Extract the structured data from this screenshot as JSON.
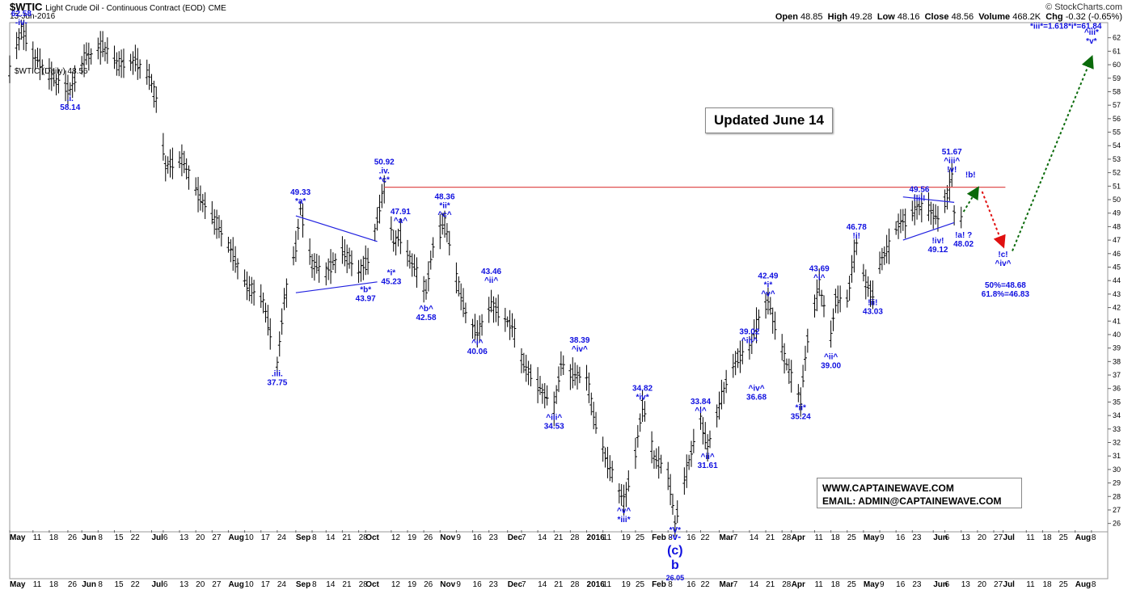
{
  "header": {
    "symbol": "$WTIC",
    "title": "Light Crude Oil - Continuous Contract (EOD)",
    "exchange": "CME",
    "date": "13-Jun-2016",
    "brand": "© StockCharts.com",
    "open_label": "Open",
    "open": "48.85",
    "high_label": "High",
    "high": "49.28",
    "low_label": "Low",
    "low": "48.16",
    "close_label": "Close",
    "close": "48.56",
    "volume_label": "Volume",
    "volume": "468.2K",
    "chg_label": "Chg",
    "chg": "-0.32 (-0.65%)",
    "legend": "$WTIC (Daily) 48.56"
  },
  "annotations": {
    "updated": "Updated June 14",
    "site": "WWW.CAPTAINEWAVE.COM",
    "email": "EMAIL: ADMIN@CAPTAINEWAVE.COM"
  },
  "colors": {
    "wave_labels": "#1010e0",
    "resistance_line": "#e05050",
    "triangle": "#2020e0",
    "bars": "#000000",
    "arrow_up": "#0a6a0a",
    "arrow_down": "#e01010"
  },
  "chart_data": {
    "type": "ohlc",
    "y_range": [
      25.5,
      63
    ],
    "y_ticks": [
      26,
      27,
      28,
      29,
      30,
      31,
      32,
      33,
      34,
      35,
      36,
      37,
      38,
      39,
      40,
      41,
      42,
      43,
      44,
      45,
      46,
      47,
      48,
      49,
      50,
      51,
      52,
      53,
      54,
      55,
      56,
      57,
      58,
      59,
      60,
      61,
      62
    ],
    "x_range": [
      "2015-05-01",
      "2016-08-15"
    ],
    "x_labels": [
      {
        "t": "May",
        "d": "2015-05-01",
        "bold": true
      },
      {
        "t": "11",
        "d": "2015-05-11"
      },
      {
        "t": "18",
        "d": "2015-05-18"
      },
      {
        "t": "26",
        "d": "2015-05-26"
      },
      {
        "t": "Jun",
        "d": "2015-06-01",
        "bold": true
      },
      {
        "t": "8",
        "d": "2015-06-08"
      },
      {
        "t": "15",
        "d": "2015-06-15"
      },
      {
        "t": "22",
        "d": "2015-06-22"
      },
      {
        "t": "Jul",
        "d": "2015-07-01",
        "bold": true
      },
      {
        "t": "6",
        "d": "2015-07-06"
      },
      {
        "t": "13",
        "d": "2015-07-13"
      },
      {
        "t": "20",
        "d": "2015-07-20"
      },
      {
        "t": "27",
        "d": "2015-07-27"
      },
      {
        "t": "Aug",
        "d": "2015-08-03",
        "bold": true
      },
      {
        "t": "10",
        "d": "2015-08-10"
      },
      {
        "t": "17",
        "d": "2015-08-17"
      },
      {
        "t": "24",
        "d": "2015-08-24"
      },
      {
        "t": "Sep",
        "d": "2015-09-01",
        "bold": true
      },
      {
        "t": "8",
        "d": "2015-09-08"
      },
      {
        "t": "14",
        "d": "2015-09-14"
      },
      {
        "t": "21",
        "d": "2015-09-21"
      },
      {
        "t": "28",
        "d": "2015-09-28"
      },
      {
        "t": "Oct",
        "d": "2015-10-01",
        "bold": true
      },
      {
        "t": "12",
        "d": "2015-10-12"
      },
      {
        "t": "19",
        "d": "2015-10-19"
      },
      {
        "t": "26",
        "d": "2015-10-26"
      },
      {
        "t": "Nov",
        "d": "2015-11-02",
        "bold": true
      },
      {
        "t": "9",
        "d": "2015-11-09"
      },
      {
        "t": "16",
        "d": "2015-11-16"
      },
      {
        "t": "23",
        "d": "2015-11-23"
      },
      {
        "t": "Dec",
        "d": "2015-12-01",
        "bold": true
      },
      {
        "t": "7",
        "d": "2015-12-07"
      },
      {
        "t": "14",
        "d": "2015-12-14"
      },
      {
        "t": "21",
        "d": "2015-12-21"
      },
      {
        "t": "28",
        "d": "2015-12-28"
      },
      {
        "t": "2016",
        "d": "2016-01-04",
        "bold": true
      },
      {
        "t": "11",
        "d": "2016-01-11"
      },
      {
        "t": "19",
        "d": "2016-01-19"
      },
      {
        "t": "25",
        "d": "2016-01-25"
      },
      {
        "t": "Feb",
        "d": "2016-02-01",
        "bold": true
      },
      {
        "t": "8",
        "d": "2016-02-08"
      },
      {
        "t": "16",
        "d": "2016-02-16"
      },
      {
        "t": "22",
        "d": "2016-02-22"
      },
      {
        "t": "Mar",
        "d": "2016-03-01",
        "bold": true
      },
      {
        "t": "7",
        "d": "2016-03-07"
      },
      {
        "t": "14",
        "d": "2016-03-14"
      },
      {
        "t": "21",
        "d": "2016-03-21"
      },
      {
        "t": "28",
        "d": "2016-03-28"
      },
      {
        "t": "Apr",
        "d": "2016-04-01",
        "bold": true
      },
      {
        "t": "11",
        "d": "2016-04-11"
      },
      {
        "t": "18",
        "d": "2016-04-18"
      },
      {
        "t": "25",
        "d": "2016-04-25"
      },
      {
        "t": "May",
        "d": "2016-05-02",
        "bold": true
      },
      {
        "t": "9",
        "d": "2016-05-09"
      },
      {
        "t": "16",
        "d": "2016-05-16"
      },
      {
        "t": "23",
        "d": "2016-05-23"
      },
      {
        "t": "Jun",
        "d": "2016-06-01",
        "bold": true
      },
      {
        "t": "6",
        "d": "2016-06-06"
      },
      {
        "t": "13",
        "d": "2016-06-13"
      },
      {
        "t": "20",
        "d": "2016-06-20"
      },
      {
        "t": "27",
        "d": "2016-06-27"
      },
      {
        "t": "Jul",
        "d": "2016-07-01",
        "bold": true
      },
      {
        "t": "11",
        "d": "2016-07-11"
      },
      {
        "t": "18",
        "d": "2016-07-18"
      },
      {
        "t": "25",
        "d": "2016-07-25"
      },
      {
        "t": "Aug",
        "d": "2016-08-01",
        "bold": true
      },
      {
        "t": "8",
        "d": "2016-08-08"
      }
    ],
    "price_path": [
      [
        "2015-05-01",
        59.5
      ],
      [
        "2015-05-06",
        62.58
      ],
      [
        "2015-05-12",
        60.5
      ],
      [
        "2015-05-20",
        58.9
      ],
      [
        "2015-05-27",
        58.14
      ],
      [
        "2015-06-02",
        60.4
      ],
      [
        "2015-06-10",
        61.4
      ],
      [
        "2015-06-17",
        60.0
      ],
      [
        "2015-06-24",
        60.3
      ],
      [
        "2015-06-30",
        59.1
      ],
      [
        "2015-07-03",
        57.4
      ],
      [
        "2015-07-07",
        52.5
      ],
      [
        "2015-07-14",
        53.0
      ],
      [
        "2015-07-21",
        50.4
      ],
      [
        "2015-07-28",
        48.5
      ],
      [
        "2015-08-04",
        46.3
      ],
      [
        "2015-08-11",
        43.6
      ],
      [
        "2015-08-18",
        42.5
      ],
      [
        "2015-08-24",
        37.75
      ],
      [
        "2015-08-27",
        42.5
      ],
      [
        "2015-09-01",
        46.5
      ],
      [
        "2015-09-03",
        49.33
      ],
      [
        "2015-09-08",
        45.2
      ],
      [
        "2015-09-14",
        44.6
      ],
      [
        "2015-09-21",
        46.2
      ],
      [
        "2015-09-28",
        44.6
      ],
      [
        "2015-10-02",
        45.5
      ],
      [
        "2015-10-06",
        48.5
      ],
      [
        "2015-10-09",
        50.92
      ],
      [
        "2015-10-13",
        46.8
      ],
      [
        "2015-10-16",
        47.3
      ],
      [
        "2015-10-20",
        45.6
      ],
      [
        "2015-10-23",
        44.6
      ],
      [
        "2015-10-27",
        43.2
      ],
      [
        "2015-10-30",
        46.6
      ],
      [
        "2015-11-04",
        48.36
      ],
      [
        "2015-11-09",
        44.2
      ],
      [
        "2015-11-13",
        41.6
      ],
      [
        "2015-11-18",
        40.06
      ],
      [
        "2015-11-24",
        42.2
      ],
      [
        "2015-11-27",
        41.7
      ],
      [
        "2015-12-03",
        40.6
      ],
      [
        "2015-12-08",
        37.7
      ],
      [
        "2015-12-14",
        36.3
      ],
      [
        "2015-12-21",
        34.53
      ],
      [
        "2015-12-24",
        37.8
      ],
      [
        "2015-12-28",
        37.1
      ],
      [
        "2016-01-04",
        36.8
      ],
      [
        "2016-01-08",
        33.2
      ],
      [
        "2016-01-13",
        30.5
      ],
      [
        "2016-01-20",
        27.6
      ],
      [
        "2016-01-25",
        31.2
      ],
      [
        "2016-01-28",
        34.82
      ],
      [
        "2016-02-02",
        30.9
      ],
      [
        "2016-02-08",
        29.7
      ],
      [
        "2016-02-11",
        26.05
      ],
      [
        "2016-02-17",
        30.6
      ],
      [
        "2016-02-22",
        33.84
      ],
      [
        "2016-02-25",
        31.61
      ],
      [
        "2016-03-01",
        34.7
      ],
      [
        "2016-03-04",
        36.5
      ],
      [
        "2016-03-09",
        38.3
      ],
      [
        "2016-03-14",
        39.02
      ],
      [
        "2016-03-18",
        41.2
      ],
      [
        "2016-03-22",
        42.49
      ],
      [
        "2016-03-29",
        38.3
      ],
      [
        "2016-04-01",
        36.8
      ],
      [
        "2016-04-05",
        35.24
      ],
      [
        "2016-04-08",
        39.7
      ],
      [
        "2016-04-13",
        43.69
      ],
      [
        "2016-04-18",
        39.8
      ],
      [
        "2016-04-20",
        42.6
      ],
      [
        "2016-04-25",
        42.6
      ],
      [
        "2016-04-29",
        46.78
      ],
      [
        "2016-05-03",
        43.7
      ],
      [
        "2016-05-06",
        43.03
      ],
      [
        "2016-05-10",
        45.7
      ],
      [
        "2016-05-13",
        46.5
      ],
      [
        "2016-05-17",
        48.2
      ],
      [
        "2016-05-20",
        48.5
      ],
      [
        "2016-05-26",
        49.56
      ],
      [
        "2016-05-31",
        49.1
      ],
      [
        "2016-06-03",
        48.6
      ],
      [
        "2016-06-07",
        50.3
      ],
      [
        "2016-06-09",
        51.67
      ],
      [
        "2016-06-10",
        49.1
      ],
      [
        "2016-06-13",
        48.56
      ]
    ],
    "resistance_line": {
      "from": "2015-10-09",
      "to": "2016-07-02",
      "value": 50.92
    },
    "triangles": [
      {
        "d0": "2015-09-01",
        "d1": "2015-10-06",
        "top": [
          48.8,
          46.9
        ],
        "bottom": [
          43.1,
          43.9
        ]
      },
      {
        "d0": "2016-05-19",
        "d1": "2016-06-10",
        "top": [
          50.2,
          49.8
        ],
        "bottom": [
          47.0,
          48.3
        ]
      }
    ],
    "arrows": [
      {
        "color": "arrow_up",
        "from": [
          "2016-06-14",
          49.1
        ],
        "to": [
          "2016-06-20",
          50.8
        ]
      },
      {
        "color": "arrow_down",
        "from": [
          "2016-06-22",
          50.6
        ],
        "to": [
          "2016-07-01",
          46.6
        ]
      },
      {
        "color": "arrow_up",
        "from": [
          "2016-07-05",
          46.2
        ],
        "to": [
          "2016-08-08",
          60.5
        ]
      }
    ],
    "wave_labels": [
      {
        "lines": [
          "62.58",
          "-iv-"
        ],
        "d": "2015-05-06",
        "y": 62.58,
        "pos": "above"
      },
      {
        "lines": [
          ".i.",
          "58.14"
        ],
        "d": "2015-05-27",
        "y": 58.14,
        "pos": "below"
      },
      {
        "lines": [
          ".iii.",
          "37.75"
        ],
        "d": "2015-08-24",
        "y": 37.75,
        "pos": "below"
      },
      {
        "lines": [
          "49.33",
          "*a*"
        ],
        "d": "2015-09-03",
        "y": 49.33,
        "pos": "above"
      },
      {
        "lines": [
          "*b*",
          "43.97"
        ],
        "d": "2015-10-01",
        "y": 43.97,
        "pos": "below"
      },
      {
        "lines": [
          "50.92",
          ".iv.",
          "*c*"
        ],
        "d": "2015-10-09",
        "y": 50.92,
        "pos": "above"
      },
      {
        "lines": [
          "47.91",
          "^a^"
        ],
        "d": "2015-10-16",
        "y": 47.91,
        "pos": "above"
      },
      {
        "lines": [
          "*i*",
          "45.23"
        ],
        "d": "2015-10-12",
        "y": 45.23,
        "pos": "below"
      },
      {
        "lines": [
          "^b^",
          "42.58"
        ],
        "d": "2015-10-27",
        "y": 42.58,
        "pos": "below"
      },
      {
        "lines": [
          "48.36",
          "*ii*",
          "^c^"
        ],
        "d": "2015-11-04",
        "y": 48.36,
        "pos": "above"
      },
      {
        "lines": [
          "43.46",
          "^ii^"
        ],
        "d": "2015-11-24",
        "y": 43.46,
        "pos": "above"
      },
      {
        "lines": [
          "^i^",
          "40.06"
        ],
        "d": "2015-11-18",
        "y": 40.06,
        "pos": "below"
      },
      {
        "lines": [
          "^iii^",
          "34.53"
        ],
        "d": "2015-12-21",
        "y": 34.53,
        "pos": "below"
      },
      {
        "lines": [
          "38.39",
          "^iv^"
        ],
        "d": "2016-01-01",
        "y": 38.39,
        "pos": "above"
      },
      {
        "lines": [
          "^v^",
          "*iii*"
        ],
        "d": "2016-01-20",
        "y": 27.6,
        "pos": "below"
      },
      {
        "lines": [
          "34.82",
          "*iv*"
        ],
        "d": "2016-01-28",
        "y": 34.82,
        "pos": "above"
      },
      {
        "lines": [
          "33.84",
          "^i^"
        ],
        "d": "2016-02-22",
        "y": 33.84,
        "pos": "above"
      },
      {
        "lines": [
          "^ii^",
          "31.61"
        ],
        "d": "2016-02-25",
        "y": 31.61,
        "pos": "below"
      },
      {
        "lines": [
          "39.02",
          "^iii^"
        ],
        "d": "2016-03-14",
        "y": 39.02,
        "pos": "above"
      },
      {
        "lines": [
          "^iv^",
          "36.68"
        ],
        "d": "2016-03-17",
        "y": 36.68,
        "pos": "below"
      },
      {
        "lines": [
          "42.49",
          "*i*",
          "^v^"
        ],
        "d": "2016-03-22",
        "y": 42.49,
        "pos": "above"
      },
      {
        "lines": [
          "*ii*",
          "35.24"
        ],
        "d": "2016-04-05",
        "y": 35.24,
        "pos": "below"
      },
      {
        "lines": [
          "43.69",
          "^i^"
        ],
        "d": "2016-04-13",
        "y": 43.69,
        "pos": "above"
      },
      {
        "lines": [
          "^ii^",
          "39.00"
        ],
        "d": "2016-04-18",
        "y": 39.0,
        "pos": "below"
      },
      {
        "lines": [
          "46.78",
          "!i!"
        ],
        "d": "2016-04-29",
        "y": 46.78,
        "pos": "above"
      },
      {
        "lines": [
          "!ii!",
          "43.03"
        ],
        "d": "2016-05-06",
        "y": 43.03,
        "pos": "below"
      },
      {
        "lines": [
          "49.56",
          "!iii!"
        ],
        "d": "2016-05-26",
        "y": 49.56,
        "pos": "above"
      },
      {
        "lines": [
          "!iv!",
          "49.12"
        ],
        "d": "2016-06-03",
        "y": 47.6,
        "pos": "below"
      },
      {
        "lines": [
          "51.67",
          "^iii^",
          "!v!"
        ],
        "d": "2016-06-09",
        "y": 51.67,
        "pos": "above"
      },
      {
        "lines": [
          "!a! ?",
          "48.02"
        ],
        "d": "2016-06-14",
        "y": 48.02,
        "pos": "below"
      },
      {
        "lines": [
          "!b!"
        ],
        "d": "2016-06-17",
        "y": 51.3,
        "pos": "above"
      },
      {
        "lines": [
          "!c!",
          "^iv^"
        ],
        "d": "2016-07-01",
        "y": 46.6,
        "pos": "below"
      },
      {
        "lines": [
          "50%=48.68",
          "61.8%=46.83"
        ],
        "d": "2016-07-02",
        "y": 44.3,
        "pos": "below"
      },
      {
        "lines": [
          "*iii*=1.618*i*=61.84"
        ],
        "d": "2016-07-28",
        "y": 62.3,
        "pos": "above"
      },
      {
        "lines": [
          "^iii*",
          "*v*"
        ],
        "d": "2016-08-08",
        "y": 61.2,
        "pos": "above"
      }
    ],
    "big_labels": [
      {
        "lines": [
          "*V*",
          "-v-",
          "(c)",
          "b",
          "26.05"
        ],
        "d": "2016-02-11"
      }
    ]
  }
}
